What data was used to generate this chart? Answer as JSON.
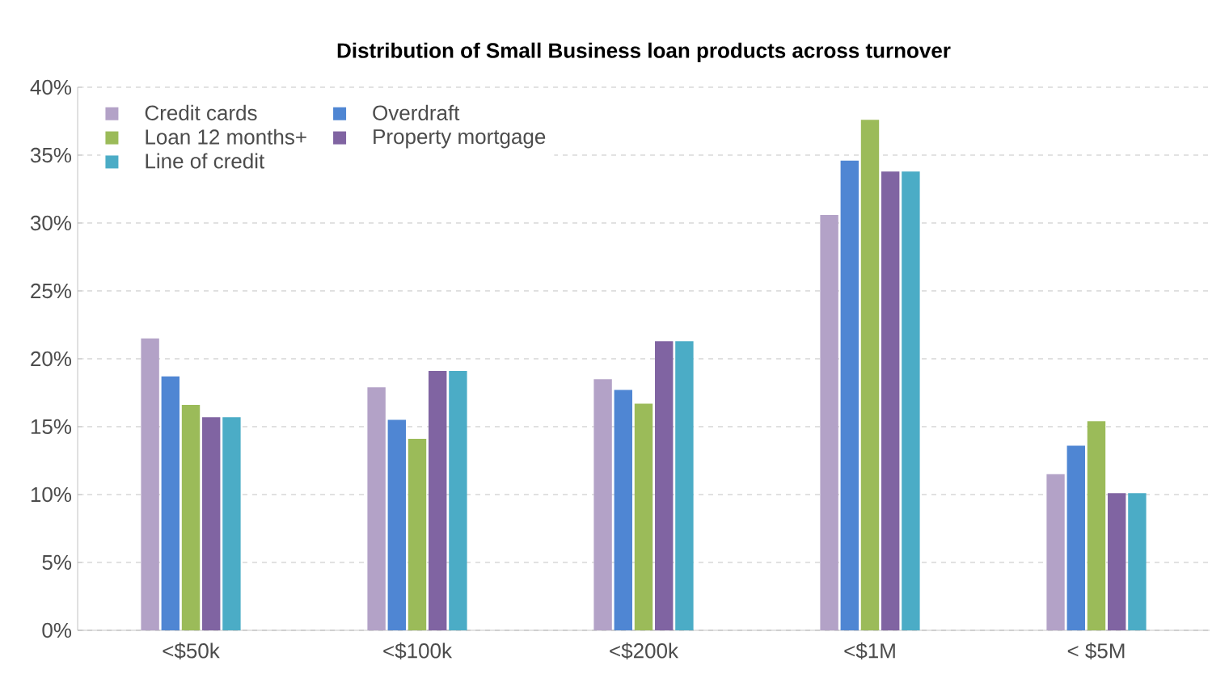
{
  "chart_data": {
    "type": "bar",
    "title": "Distribution of Small Business loan products across turnover",
    "categories": [
      "<$50k",
      "<$100k",
      "<$200k",
      "<$1M",
      "< $5M"
    ],
    "series": [
      {
        "name": "Credit cards",
        "color": "#b3a2c7",
        "values": [
          21.5,
          17.9,
          18.5,
          30.6,
          11.5
        ]
      },
      {
        "name": "Overdraft",
        "color": "#4f86d3",
        "values": [
          18.7,
          15.5,
          17.7,
          34.6,
          13.6
        ]
      },
      {
        "name": "Loan 12 months+",
        "color": "#9bbb59",
        "values": [
          16.6,
          14.1,
          16.7,
          37.6,
          15.4
        ]
      },
      {
        "name": "Property mortgage",
        "color": "#8064a2",
        "values": [
          15.7,
          19.1,
          21.3,
          33.8,
          10.1
        ]
      },
      {
        "name": "Line of credit",
        "color": "#4bacc6",
        "values": [
          15.7,
          19.1,
          21.3,
          33.8,
          10.1
        ]
      }
    ],
    "ylim": [
      0,
      40
    ],
    "yticks": [
      {
        "value": 0,
        "label": "0%"
      },
      {
        "value": 5,
        "label": "5%"
      },
      {
        "value": 10,
        "label": "10%"
      },
      {
        "value": 15,
        "label": "15%"
      },
      {
        "value": 20,
        "label": "20%"
      },
      {
        "value": 25,
        "label": "25%"
      },
      {
        "value": 30,
        "label": "30%"
      },
      {
        "value": 35,
        "label": "35%"
      },
      {
        "value": 40,
        "label": "40%"
      }
    ],
    "grid": "y",
    "legend": "top left"
  }
}
